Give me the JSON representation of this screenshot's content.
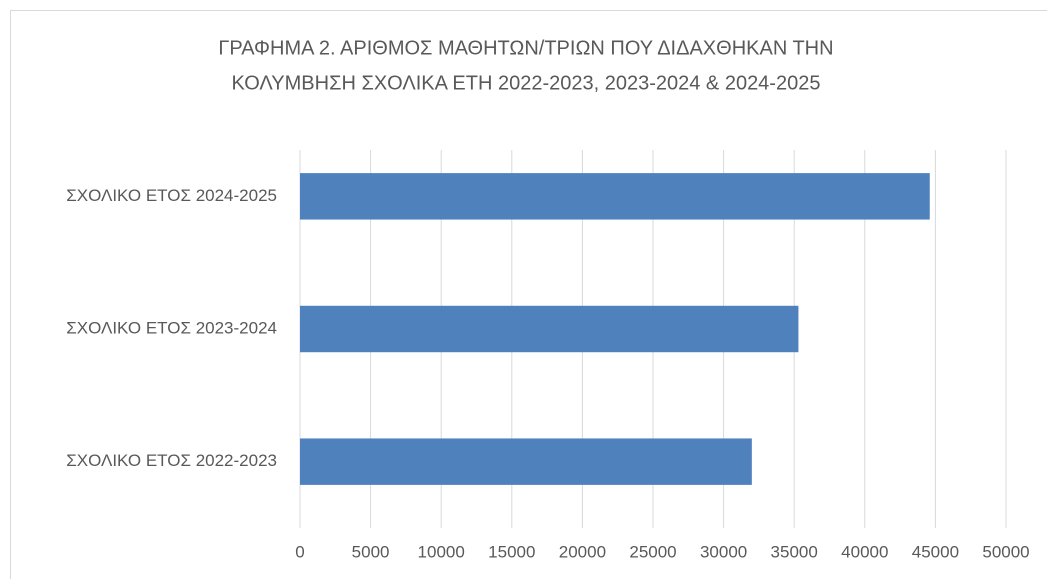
{
  "chart_data": {
    "type": "hbar",
    "title": [
      "ΓΡΑΦΗΜΑ 2. ΑΡΙΘΜΟΣ ΜΑΘΗΤΩΝ/ΤΡΙΩΝ ΠΟΥ ΔΙΔΑΧΘΗΚΑΝ ΤΗΝ",
      "ΚΟΛΥΜΒΗΣΗ ΣΧΟΛΙΚΑ ΕΤΗ 2022-2023, 2023-2024 & 2024-2025"
    ],
    "categories": [
      "ΣΧΟΛΙΚΟ ΕΤΟΣ 2022-2023",
      "ΣΧΟΛΙΚΟ ΕΤΟΣ 2023-2024",
      "ΣΧΟΛΙΚΟ ΕΤΟΣ 2024-2025"
    ],
    "values": [
      32000,
      35300,
      44600
    ],
    "color": "#4f81bd",
    "xlim": [
      0,
      50000
    ],
    "xticks": [
      0,
      5000,
      10000,
      15000,
      20000,
      25000,
      30000,
      35000,
      40000,
      45000,
      50000
    ],
    "grid": true
  }
}
